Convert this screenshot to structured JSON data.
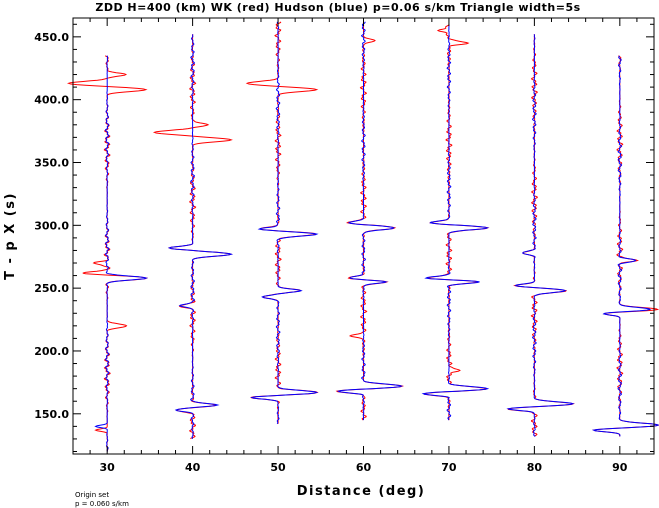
{
  "chart_data": {
    "type": "line",
    "title": "ZDD H=400 (km) WK (red) Hudson (blue) p=0.06 s/km Triangle width=5s",
    "xlabel": "Distance (deg)",
    "ylabel": "T - p X (s)",
    "xlim": [
      26,
      94
    ],
    "ylim": [
      118,
      465
    ],
    "x_ticks": [
      30,
      40,
      50,
      60,
      70,
      80,
      90
    ],
    "x_tick_labels": [
      "30",
      "40",
      "50",
      "60",
      "70",
      "80",
      "90"
    ],
    "y_ticks": [
      150,
      200,
      250,
      300,
      350,
      400,
      450
    ],
    "y_tick_labels": [
      "150.0",
      "200.0",
      "250.0",
      "300.0",
      "350.0",
      "400.0",
      "450.0"
    ],
    "amplitude_scale_deg": 4.5,
    "series_colors": {
      "WK": "#ff0000",
      "Hudson": "#0000ff"
    },
    "traces": [
      {
        "distance": 30,
        "start": 120,
        "end": 435,
        "hudson_events": [
          [
            258,
            1.0,
            2.5
          ],
          [
            140,
            -0.3,
            1.5
          ]
        ],
        "wk_events": [
          [
            258,
            1.0,
            2.5
          ],
          [
            262,
            -0.6,
            2
          ],
          [
            408,
            1.0,
            2.5
          ],
          [
            413,
            -1.0,
            2.5
          ],
          [
            420,
            0.5,
            2
          ],
          [
            220,
            0.5,
            2.5
          ],
          [
            270,
            -0.3,
            2
          ],
          [
            137,
            -0.3,
            1.5
          ]
        ]
      },
      {
        "distance": 40,
        "start": 130,
        "end": 452,
        "hudson_events": [
          [
            157,
            0.6,
            2
          ],
          [
            153,
            -0.4,
            2
          ],
          [
            277,
            1.0,
            2.5
          ],
          [
            282,
            -0.6,
            2
          ],
          [
            236,
            -0.3,
            2
          ]
        ],
        "wk_events": [
          [
            157,
            0.6,
            2
          ],
          [
            153,
            -0.4,
            2
          ],
          [
            277,
            1.0,
            2.5
          ],
          [
            282,
            -0.6,
            2
          ],
          [
            236,
            -0.3,
            2
          ],
          [
            368,
            1.0,
            2.5
          ],
          [
            374,
            -1.0,
            2.5
          ],
          [
            380,
            0.4,
            2
          ]
        ]
      },
      {
        "distance": 50,
        "start": 142,
        "end": 462,
        "hudson_events": [
          [
            167,
            1.0,
            2.5
          ],
          [
            163,
            -0.7,
            2
          ],
          [
            293,
            1.0,
            2.5
          ],
          [
            297,
            -0.5,
            2
          ],
          [
            248,
            0.6,
            2
          ],
          [
            243,
            -0.4,
            2
          ]
        ],
        "wk_events": [
          [
            167,
            1.0,
            2.5
          ],
          [
            163,
            -0.7,
            2
          ],
          [
            293,
            1.0,
            2.5
          ],
          [
            297,
            -0.5,
            2
          ],
          [
            248,
            0.6,
            2
          ],
          [
            243,
            -0.4,
            2
          ],
          [
            408,
            1.0,
            2.5
          ],
          [
            413,
            -0.8,
            2.5
          ]
        ]
      },
      {
        "distance": 60,
        "start": 145,
        "end": 462,
        "hudson_events": [
          [
            172,
            1.0,
            2.5
          ],
          [
            168,
            -0.7,
            2
          ],
          [
            298,
            0.8,
            2.5
          ],
          [
            302,
            -0.4,
            2
          ],
          [
            255,
            0.6,
            2
          ],
          [
            258,
            -0.4,
            2
          ]
        ],
        "wk_events": [
          [
            172,
            1.0,
            2.5
          ],
          [
            168,
            -0.7,
            2
          ],
          [
            298,
            0.8,
            2.5
          ],
          [
            302,
            -0.4,
            2
          ],
          [
            255,
            0.6,
            2
          ],
          [
            258,
            -0.4,
            2
          ],
          [
            212,
            -0.3,
            2
          ],
          [
            447,
            0.3,
            2
          ]
        ]
      },
      {
        "distance": 70,
        "start": 145,
        "end": 460,
        "hudson_events": [
          [
            170,
            1.0,
            2.5
          ],
          [
            166,
            -0.7,
            2
          ],
          [
            298,
            1.0,
            2.5
          ],
          [
            302,
            -0.5,
            2
          ],
          [
            255,
            0.8,
            2
          ],
          [
            258,
            -0.6,
            2
          ]
        ],
        "wk_events": [
          [
            170,
            1.0,
            2.5
          ],
          [
            166,
            -0.7,
            2
          ],
          [
            298,
            1.0,
            2.5
          ],
          [
            302,
            -0.5,
            2
          ],
          [
            255,
            0.8,
            2
          ],
          [
            258,
            -0.6,
            2
          ],
          [
            185,
            0.3,
            2
          ],
          [
            445,
            0.5,
            2
          ],
          [
            455,
            -0.3,
            2
          ]
        ]
      },
      {
        "distance": 80,
        "start": 132,
        "end": 452,
        "hudson_events": [
          [
            158,
            1.0,
            2.5
          ],
          [
            154,
            -0.7,
            2
          ],
          [
            248,
            0.8,
            2.5
          ],
          [
            252,
            -0.5,
            2
          ],
          [
            278,
            -0.3,
            2
          ]
        ],
        "wk_events": [
          [
            158,
            1.0,
            2.5
          ],
          [
            154,
            -0.7,
            2
          ],
          [
            248,
            0.8,
            2.5
          ],
          [
            252,
            -0.5,
            2
          ],
          [
            278,
            -0.3,
            2
          ]
        ]
      },
      {
        "distance": 90,
        "start": 132,
        "end": 435,
        "hudson_events": [
          [
            141,
            1.0,
            2.5
          ],
          [
            137,
            -0.7,
            2
          ],
          [
            233,
            0.8,
            2.5
          ],
          [
            230,
            -0.5,
            2
          ],
          [
            272,
            0.4,
            2
          ]
        ],
        "wk_events": [
          [
            141,
            1.0,
            2.5
          ],
          [
            137,
            -0.7,
            2
          ],
          [
            233,
            1.0,
            2.5
          ],
          [
            230,
            -0.5,
            2
          ],
          [
            272,
            0.4,
            2
          ]
        ]
      }
    ]
  },
  "footnote": {
    "line1": "Origin set",
    "line2": "p = 0.060 s/km"
  }
}
